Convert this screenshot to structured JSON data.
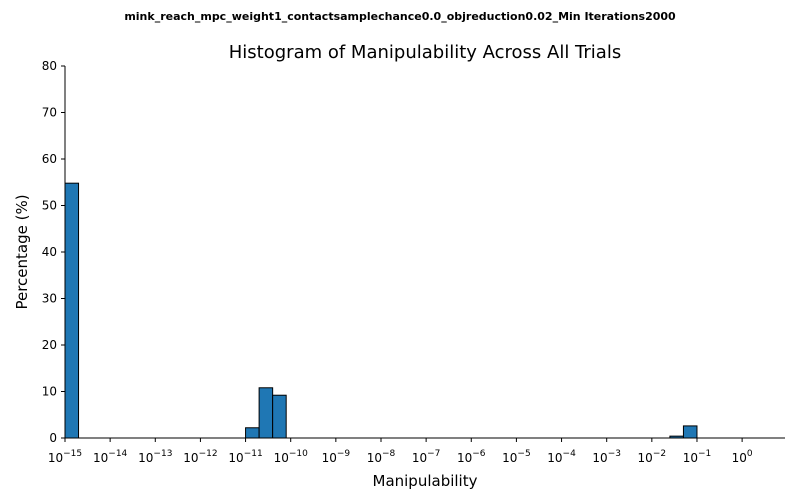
{
  "chart_data": {
    "type": "bar",
    "suptitle": "mink_reach_mpc_weight1_contactsamplechance0.0_objreduction0.02_Min Iterations2000",
    "title": "Histogram of Manipulability Across All Trials",
    "xlabel": "Manipulability",
    "ylabel": "Percentage (%)",
    "x_scale": "log",
    "x_ticks": [
      {
        "base": "10",
        "exp": "−15"
      },
      {
        "base": "10",
        "exp": "−14"
      },
      {
        "base": "10",
        "exp": "−13"
      },
      {
        "base": "10",
        "exp": "−12"
      },
      {
        "base": "10",
        "exp": "−11"
      },
      {
        "base": "10",
        "exp": "−10"
      },
      {
        "base": "10",
        "exp": "−9"
      },
      {
        "base": "10",
        "exp": "−8"
      },
      {
        "base": "10",
        "exp": "−7"
      },
      {
        "base": "10",
        "exp": "−6"
      },
      {
        "base": "10",
        "exp": "−5"
      },
      {
        "base": "10",
        "exp": "−4"
      },
      {
        "base": "10",
        "exp": "−3"
      },
      {
        "base": "10",
        "exp": "−2"
      },
      {
        "base": "10",
        "exp": "−1"
      },
      {
        "base": "10",
        "exp": "0"
      }
    ],
    "x_tick_exponents": [
      -15,
      -14,
      -13,
      -12,
      -11,
      -10,
      -9,
      -8,
      -7,
      -6,
      -5,
      -4,
      -3,
      -2,
      -1,
      0
    ],
    "xlim_log10": [
      -15,
      0.95
    ],
    "ylim": [
      0,
      80
    ],
    "y_ticks": [
      0,
      10,
      20,
      30,
      40,
      50,
      60,
      70,
      80
    ],
    "grid": false,
    "bar_color": "#1f77b4",
    "bar_edge_color": "#000000",
    "bins": [
      {
        "log10_start": -15.0,
        "log10_end": -14.7,
        "value": 54.8
      },
      {
        "log10_start": -11.0,
        "log10_end": -10.7,
        "value": 2.2
      },
      {
        "log10_start": -10.7,
        "log10_end": -10.4,
        "value": 10.8
      },
      {
        "log10_start": -10.4,
        "log10_end": -10.1,
        "value": 9.2
      },
      {
        "log10_start": -1.6,
        "log10_end": -1.3,
        "value": 0.4
      },
      {
        "log10_start": -1.3,
        "log10_end": -1.0,
        "value": 2.6
      }
    ]
  }
}
